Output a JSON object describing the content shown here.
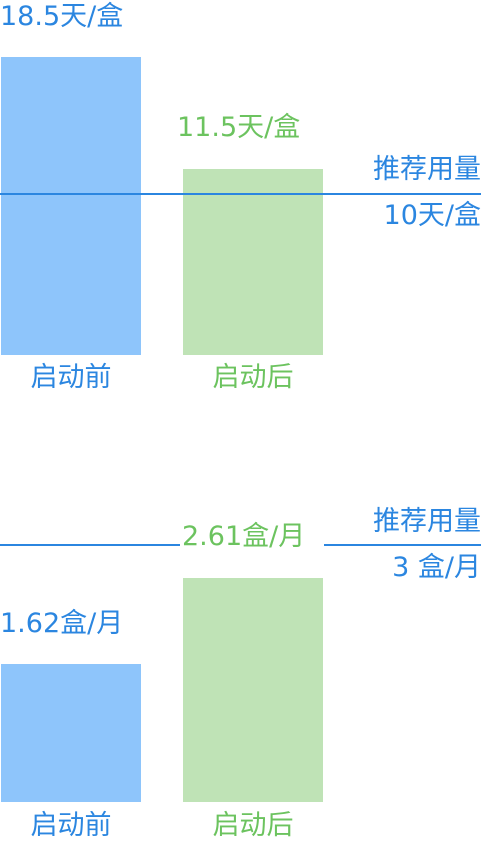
{
  "colors": {
    "before_bar": "#8ec5fb",
    "after_bar": "#bfe3b6",
    "before_text": "#2b86e0",
    "after_text": "#6cc35f",
    "reference_line": "#2b86e0"
  },
  "chart_data": [
    {
      "type": "bar",
      "categories": [
        "启动前",
        "启动后"
      ],
      "values": [
        18.5,
        11.5
      ],
      "value_labels": [
        "18.5天/盒",
        "11.5天/盒"
      ],
      "unit": "天/盒",
      "reference": {
        "value": 10,
        "label_line1": "推荐用量",
        "label_line2": "10天/盒"
      },
      "ylim": [
        0,
        18.5
      ],
      "grid": false
    },
    {
      "type": "bar",
      "categories": [
        "启动前",
        "启动后"
      ],
      "values": [
        1.62,
        2.61
      ],
      "value_labels": [
        "1.62盒/月",
        "2.61盒/月"
      ],
      "unit": "盒/月",
      "reference": {
        "value": 3,
        "label_line1": "推荐用量",
        "label_line2": "3 盒/月"
      },
      "ylim": [
        0,
        3.2
      ],
      "grid": false
    }
  ]
}
